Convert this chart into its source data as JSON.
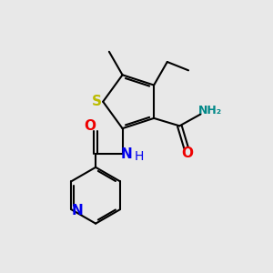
{
  "background_color": "#e8e8e8",
  "bond_color": "#000000",
  "S_color": "#bbbb00",
  "N_color": "#0000ee",
  "O_color": "#ee0000",
  "NH2_color": "#008888",
  "figsize": [
    3.0,
    3.0
  ],
  "dpi": 100,
  "xlim": [
    0,
    10
  ],
  "ylim": [
    0,
    10
  ]
}
